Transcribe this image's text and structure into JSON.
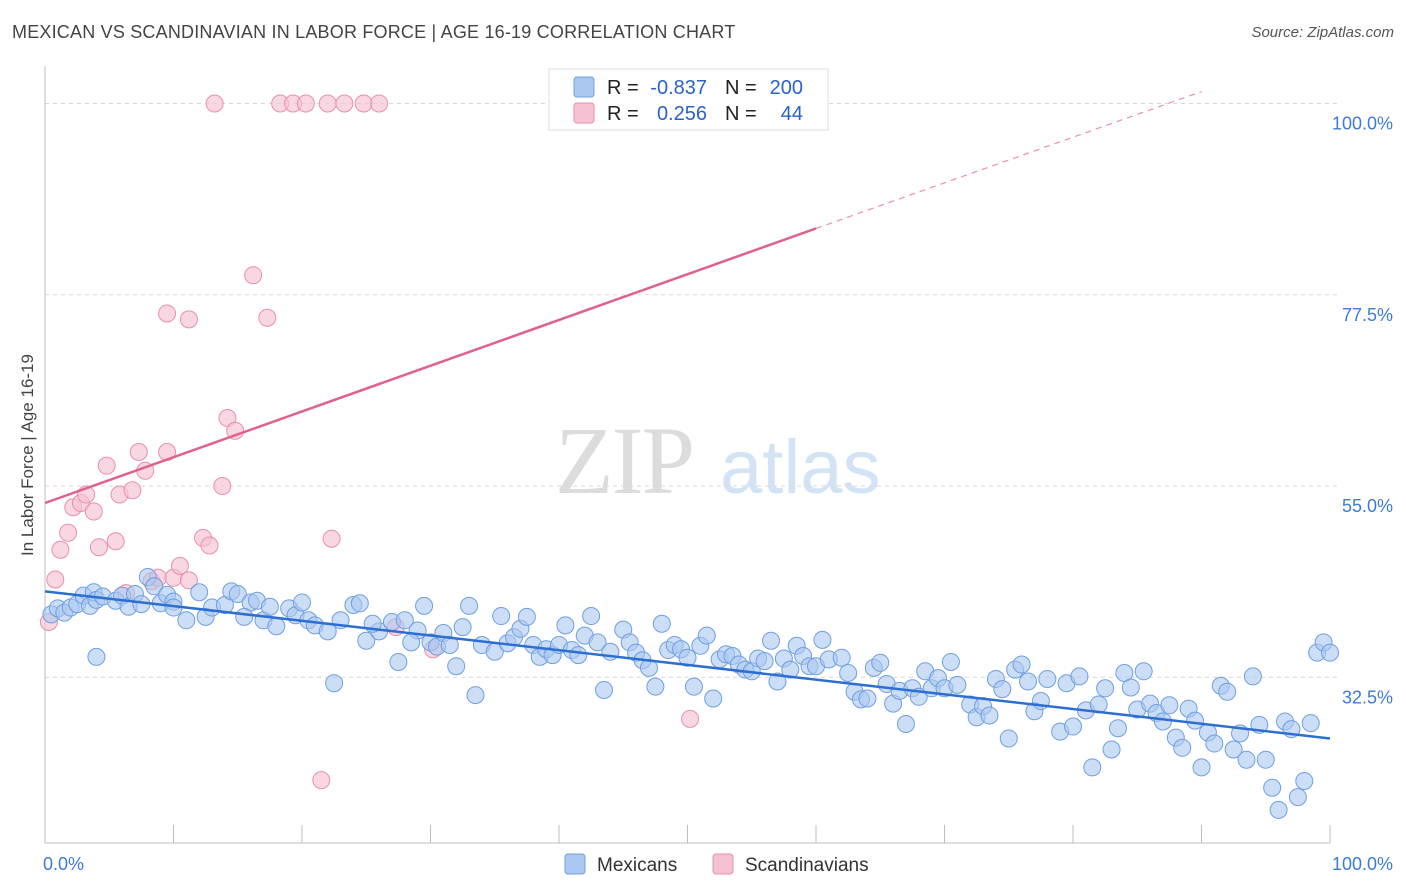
{
  "title": "MEXICAN VS SCANDINAVIAN IN LABOR FORCE | AGE 16-19 CORRELATION CHART",
  "source": "Source: ZipAtlas.com",
  "watermark": {
    "zip": "ZIP",
    "atlas": "atlas"
  },
  "colors": {
    "mexicans_fill": "#aac8f0",
    "mexicans_stroke": "#6f9fe0",
    "mexicans_line": "#2d6fd0",
    "scandinavians_fill": "#f6c1d2",
    "scandinavians_stroke": "#e98fae",
    "scandinavians_line": "#e0608f",
    "axis_text": "#3d7bd6",
    "grid": "#d9d9d9"
  },
  "legend": {
    "rows": [
      {
        "r_label": "R = ",
        "r_value": "-0.837",
        "n_label": "N = ",
        "n_value": "200"
      },
      {
        "r_label": "R = ",
        "r_value": "0.256",
        "n_label": "N = ",
        "n_value": "44"
      }
    ]
  },
  "chart_data": {
    "type": "scatter",
    "title": "MEXICAN VS SCANDINAVIAN IN LABOR FORCE | AGE 16-19 CORRELATION CHART",
    "xlabel": "",
    "ylabel": "In Labor Force | Age 16-19",
    "xlim": [
      0,
      100
    ],
    "ylim": [
      13,
      103
    ],
    "x_tick_labels": [
      "0.0%",
      "100.0%"
    ],
    "y_ticks": [
      32.5,
      55.0,
      77.5,
      100.0
    ],
    "y_tick_labels": [
      "32.5%",
      "55.0%",
      "77.5%",
      "100.0%"
    ],
    "grid": "horizontal dashed",
    "legend_position": "top-center",
    "series": [
      {
        "name": "Mexicans",
        "r": -0.837,
        "n": 200,
        "trend": {
          "x": [
            0,
            100
          ],
          "y": [
            42.6,
            25.3
          ]
        },
        "points": [
          [
            0.5,
            39.9
          ],
          [
            1,
            40.6
          ],
          [
            1.5,
            40.1
          ],
          [
            2,
            40.7
          ],
          [
            2.5,
            41.1
          ],
          [
            3,
            42.1
          ],
          [
            3.5,
            40.9
          ],
          [
            3.8,
            42.5
          ],
          [
            4,
            41.6
          ],
          [
            4.5,
            42.0
          ],
          [
            5.5,
            41.5
          ],
          [
            6,
            42.1
          ],
          [
            6.5,
            40.8
          ],
          [
            7,
            42.3
          ],
          [
            7.5,
            41.1
          ],
          [
            8,
            44.3
          ],
          [
            8.5,
            43.2
          ],
          [
            9,
            41.2
          ],
          [
            9.5,
            42.2
          ],
          [
            10,
            41.4
          ],
          [
            11,
            39.2
          ],
          [
            12,
            42.5
          ],
          [
            12.5,
            39.6
          ],
          [
            13,
            40.7
          ],
          [
            14,
            41.0
          ],
          [
            14.5,
            42.6
          ],
          [
            15,
            42.3
          ],
          [
            16,
            41.3
          ],
          [
            16.5,
            41.5
          ],
          [
            17,
            39.2
          ],
          [
            17.5,
            40.8
          ],
          [
            18,
            38.5
          ],
          [
            19,
            40.6
          ],
          [
            19.5,
            39.8
          ],
          [
            20,
            41.3
          ],
          [
            20.5,
            39.2
          ],
          [
            21,
            38.6
          ],
          [
            22,
            37.9
          ],
          [
            22.5,
            31.8
          ],
          [
            23,
            39.2
          ],
          [
            24,
            41.0
          ],
          [
            24.5,
            41.2
          ],
          [
            25,
            36.8
          ],
          [
            26,
            37.9
          ],
          [
            27,
            39.0
          ],
          [
            27.5,
            34.3
          ],
          [
            28,
            39.2
          ],
          [
            29,
            38.0
          ],
          [
            29.5,
            40.9
          ],
          [
            30,
            36.6
          ],
          [
            30.5,
            36.1
          ],
          [
            31,
            37.7
          ],
          [
            31.5,
            36.3
          ],
          [
            32,
            33.8
          ],
          [
            32.5,
            38.4
          ],
          [
            33,
            40.9
          ],
          [
            33.5,
            30.4
          ],
          [
            34,
            36.3
          ],
          [
            35,
            35.5
          ],
          [
            35.5,
            39.7
          ],
          [
            36,
            36.5
          ],
          [
            36.5,
            37.2
          ],
          [
            37,
            38.2
          ],
          [
            37.5,
            39.6
          ],
          [
            38,
            36.3
          ],
          [
            38.5,
            34.9
          ],
          [
            39,
            35.8
          ],
          [
            39.5,
            35.1
          ],
          [
            40,
            36.3
          ],
          [
            40.5,
            38.6
          ],
          [
            41,
            35.7
          ],
          [
            41.5,
            35.1
          ],
          [
            42,
            37.4
          ],
          [
            42.5,
            39.7
          ],
          [
            43,
            36.6
          ],
          [
            43.5,
            31.0
          ],
          [
            44,
            35.5
          ],
          [
            45,
            38.1
          ],
          [
            45.5,
            36.6
          ],
          [
            46,
            35.4
          ],
          [
            46.5,
            34.5
          ],
          [
            47,
            33.6
          ],
          [
            47.5,
            31.4
          ],
          [
            48,
            38.8
          ],
          [
            48.5,
            35.7
          ],
          [
            49,
            36.3
          ],
          [
            49.5,
            35.8
          ],
          [
            50,
            34.8
          ],
          [
            50.5,
            31.4
          ],
          [
            51,
            36.2
          ],
          [
            51.5,
            37.4
          ],
          [
            52,
            30.0
          ],
          [
            52.5,
            34.6
          ],
          [
            53,
            35.2
          ],
          [
            53.5,
            35.0
          ],
          [
            54,
            34.0
          ],
          [
            54.5,
            33.4
          ],
          [
            55,
            33.2
          ],
          [
            55.5,
            34.7
          ],
          [
            56,
            34.4
          ],
          [
            56.5,
            36.8
          ],
          [
            57,
            32.0
          ],
          [
            57.5,
            34.7
          ],
          [
            58,
            33.4
          ],
          [
            58.5,
            36.2
          ],
          [
            59,
            35.0
          ],
          [
            59.5,
            33.8
          ],
          [
            60,
            33.8
          ],
          [
            60.5,
            36.9
          ],
          [
            61,
            34.6
          ],
          [
            62,
            34.8
          ],
          [
            62.5,
            33.0
          ],
          [
            63,
            30.8
          ],
          [
            63.5,
            29.9
          ],
          [
            64,
            30.0
          ],
          [
            64.5,
            33.6
          ],
          [
            65,
            34.2
          ],
          [
            65.5,
            31.7
          ],
          [
            66,
            29.4
          ],
          [
            66.5,
            30.9
          ],
          [
            67,
            27.0
          ],
          [
            67.5,
            31.2
          ],
          [
            68,
            30.2
          ],
          [
            68.5,
            33.2
          ],
          [
            69,
            31.2
          ],
          [
            69.5,
            32.4
          ],
          [
            70,
            31.2
          ],
          [
            70.5,
            34.3
          ],
          [
            71,
            31.6
          ],
          [
            72,
            29.3
          ],
          [
            72.5,
            27.8
          ],
          [
            73,
            29.1
          ],
          [
            73.5,
            28.0
          ],
          [
            74,
            32.3
          ],
          [
            74.5,
            31.1
          ],
          [
            75,
            25.3
          ],
          [
            75.5,
            33.4
          ],
          [
            76,
            34.0
          ],
          [
            76.5,
            32.0
          ],
          [
            77,
            28.5
          ],
          [
            77.5,
            29.7
          ],
          [
            78,
            32.3
          ],
          [
            79,
            26.1
          ],
          [
            79.5,
            31.8
          ],
          [
            80,
            26.7
          ],
          [
            80.5,
            32.6
          ],
          [
            81,
            28.6
          ],
          [
            81.5,
            21.9
          ],
          [
            82,
            29.3
          ],
          [
            82.5,
            31.2
          ],
          [
            83,
            24.0
          ],
          [
            83.5,
            26.5
          ],
          [
            84,
            33.0
          ],
          [
            84.5,
            31.3
          ],
          [
            85,
            28.7
          ],
          [
            85.5,
            33.2
          ],
          [
            86,
            29.4
          ],
          [
            86.5,
            28.3
          ],
          [
            87,
            27.3
          ],
          [
            87.5,
            29.2
          ],
          [
            88,
            25.4
          ],
          [
            88.5,
            24.2
          ],
          [
            89,
            28.8
          ],
          [
            89.5,
            27.4
          ],
          [
            90,
            21.9
          ],
          [
            90.5,
            26.0
          ],
          [
            91,
            24.7
          ],
          [
            91.5,
            31.5
          ],
          [
            92,
            30.8
          ],
          [
            92.5,
            24.0
          ],
          [
            93,
            25.9
          ],
          [
            93.5,
            22.8
          ],
          [
            94,
            32.6
          ],
          [
            94.5,
            26.9
          ],
          [
            95,
            22.8
          ],
          [
            95.5,
            19.5
          ],
          [
            96,
            16.9
          ],
          [
            96.5,
            27.3
          ],
          [
            97,
            26.4
          ],
          [
            97.5,
            18.4
          ],
          [
            98,
            20.3
          ],
          [
            98.5,
            27.1
          ],
          [
            99,
            35.4
          ],
          [
            99.5,
            36.6
          ],
          [
            100,
            35.4
          ],
          [
            4,
            34.9
          ],
          [
            10,
            40.7
          ],
          [
            15.5,
            39.6
          ],
          [
            25.5,
            38.8
          ],
          [
            28.5,
            36.6
          ]
        ]
      },
      {
        "name": "Scandinavians",
        "r": 0.256,
        "n": 44,
        "trend": {
          "x": [
            0,
            60
          ],
          "y": [
            53.0,
            85.3
          ]
        },
        "trend_dashed": {
          "x": [
            60,
            90
          ],
          "y": [
            85.3,
            101.4
          ]
        },
        "points": [
          [
            0.3,
            39.0
          ],
          [
            0.8,
            44.0
          ],
          [
            1.2,
            47.5
          ],
          [
            1.8,
            49.5
          ],
          [
            2.2,
            52.5
          ],
          [
            2.8,
            53.0
          ],
          [
            3.2,
            54.0
          ],
          [
            3.8,
            52.0
          ],
          [
            4.2,
            47.8
          ],
          [
            4.8,
            57.4
          ],
          [
            5.5,
            48.5
          ],
          [
            5.8,
            54.0
          ],
          [
            6.3,
            42.4
          ],
          [
            6.8,
            54.5
          ],
          [
            7.3,
            59.0
          ],
          [
            7.8,
            56.8
          ],
          [
            8.3,
            43.8
          ],
          [
            8.8,
            44.2
          ],
          [
            9.5,
            59.0
          ],
          [
            10,
            44.2
          ],
          [
            10.5,
            45.6
          ],
          [
            11.2,
            43.9
          ],
          [
            12.3,
            48.9
          ],
          [
            12.8,
            48.0
          ],
          [
            13.8,
            55.0
          ],
          [
            14.2,
            63.0
          ],
          [
            14.8,
            61.5
          ],
          [
            16.2,
            79.8
          ],
          [
            17.3,
            74.8
          ],
          [
            18.3,
            100.0
          ],
          [
            19.3,
            100.0
          ],
          [
            20.3,
            100.0
          ],
          [
            22.0,
            100.0
          ],
          [
            23.3,
            100.0
          ],
          [
            24.8,
            100.0
          ],
          [
            26.0,
            100.0
          ],
          [
            27.3,
            38.4
          ],
          [
            30.2,
            35.8
          ],
          [
            50.2,
            27.6
          ],
          [
            21.5,
            20.4
          ],
          [
            9.5,
            75.3
          ],
          [
            11.2,
            74.6
          ],
          [
            13.2,
            100.0
          ],
          [
            22.3,
            48.8
          ]
        ]
      }
    ]
  },
  "bottom_legend": [
    {
      "label": "Mexicans"
    },
    {
      "label": "Scandinavians"
    }
  ]
}
